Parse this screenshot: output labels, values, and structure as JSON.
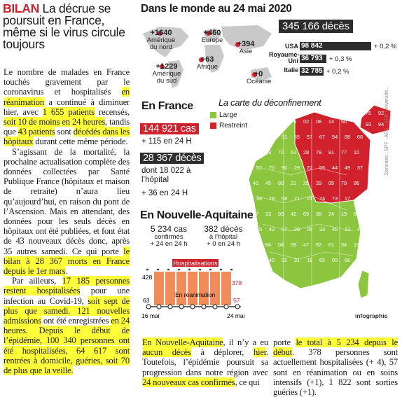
{
  "headline": {
    "keyword": "BILAN",
    "rest": " La décrue se poursuit en France, même si le virus circule toujours"
  },
  "body_left": {
    "p1_a": "Le nombre de malades en France touchés gravement par le coronavirus et hospitalisés ",
    "p1_m1": "en réanimation",
    "p1_b": " a continué à diminuer hier, avec ",
    "p1_m2": "1 655 patients",
    "p1_c": " recensés, ",
    "p1_m3": "soit 10 de moins en 24 heures",
    "p1_d": ", tandis que ",
    "p1_m4": "43 patients",
    "p1_e": " sont ",
    "p1_m5": "décédés dans les hôpitaux",
    "p1_f": " durant cette même période.",
    "p2": "S’agissant de la mortalité, la prochaine actualisation complète des données collectées par Santé Publique France (hôpitaux et maison de retraite) n’aura lieu qu’aujourd’hui, en raison du pont de l’Ascension. Mais en attendant, des données pour les seuls décès en hôpitaux ont été publiées, et font état de 43 nouveaux décès donc, après 35 autres samedi. Ce qui porte ",
    "p2_m": "le bilan à 28 367 morts en France depuis le 1er mars",
    "p2_end": ".",
    "p3_a": "Par ailleurs, ",
    "p3_m1": "17 185 personnes restent hospitalisées",
    "p3_b": " pour une infection au Covid-19, ",
    "p3_m2": "soit sept de plus que samedi. 121 nouvelles admissions",
    "p3_c": " ont été enregistrées ",
    "p3_m3": "en 24 heures. Depuis le début de l’épidémie, 100 340 personnes ont été hospitalisées, 64 617 sont rentrées à domicile, guéries, soit 70 de plus que la veille."
  },
  "body_mid": {
    "m1": "En Nouvelle-Aquitaine",
    "a": ", il n’y a eu ",
    "m2": "aucun décès",
    "b": " à déplorer, ",
    "m3": "hier",
    "c": ". Toutefois, l’épidémie poursuit sa progression dans notre région avec ",
    "m4": "24 nouveaux cas confirmés",
    "d": ", ce qui"
  },
  "body_right": {
    "a": "porte ",
    "m1": "le total à 5 234 depuis le début",
    "b": ". 378 personnes sont actuellement hospitalisées (+ 4), 57 sont en réanimation ou en soins intensifs (+1), 1 822 sont sorties guéries (+1)."
  },
  "world": {
    "title": "Dans le monde au 24 mai 2020",
    "total": "345 166 décès",
    "bubbles": [
      {
        "value": "+1640",
        "label": "Amérique du nord"
      },
      {
        "value": "+460",
        "label": "Europe"
      },
      {
        "value": "+394",
        "label": "Asie"
      },
      {
        "value": "+63",
        "label": "Afrique"
      },
      {
        "value": "+1229",
        "label": "Amérique du sud"
      },
      {
        "value": "+0",
        "label": "Océanie"
      }
    ],
    "countries": [
      {
        "name": "USA",
        "value": "98 842",
        "pct": "+ 0,2 %"
      },
      {
        "name": "Royaume-Uni",
        "value": "36 793",
        "pct": "+ 0,3 %"
      },
      {
        "name": "Italie",
        "value": "32 785",
        "pct": "+ 0,2 %"
      }
    ]
  },
  "france": {
    "title": "En France",
    "cases": "144 921 cas",
    "cases_delta": "+ 115 en 24 H",
    "deaths": "28 367 décès",
    "hosp": "dont 18 022 à l’hôpital",
    "hosp_delta": "+ 36 en 24 H"
  },
  "na": {
    "title": "En Nouvelle-Aquitaine",
    "cases": "5 234 cas",
    "cases_sub": "confirmés",
    "cases_delta": "+ 24 en 24 h",
    "deaths": "382 décès",
    "deaths_sub": "à l’hôpital",
    "deaths_delta": "+ 0 en 24 h",
    "chart": {
      "hosp_label": "Hospitalisations",
      "rea_label": "En réanimation",
      "hosp_start": "428",
      "hosp_end": "378",
      "rea_start": "63",
      "rea_end": "57",
      "date_start": "16 mai",
      "date_end": "24 mai"
    }
  },
  "map": {
    "title": "La carte du déconfinement",
    "legend_large": "Large",
    "legend_restreint": "Restreint",
    "green": "#8cc63f",
    "red": "#d0212d",
    "source": "Données : SPF · ARS · AFP, Université...",
    "credit": "infographie",
    "numbers": [
      "62",
      "59",
      "80",
      "76",
      "02",
      "08",
      "14",
      "50",
      "27",
      "60",
      "95",
      "51",
      "55",
      "57",
      "67",
      "54",
      "88",
      "68",
      "35",
      "53",
      "72",
      "61",
      "28",
      "78",
      "91",
      "77",
      "10",
      "52",
      "70",
      "90",
      "29",
      "22",
      "56",
      "44",
      "49",
      "37",
      "41",
      "45",
      "89",
      "21",
      "25",
      "39",
      "85",
      "79",
      "86",
      "36",
      "18",
      "58",
      "71",
      "01",
      "74",
      "73",
      "17",
      "16",
      "87",
      "23",
      "03",
      "42",
      "69",
      "38",
      "24",
      "19",
      "63",
      "15",
      "43",
      "07",
      "26",
      "05",
      "33",
      "46",
      "12",
      "48",
      "30",
      "84",
      "04",
      "06",
      "47",
      "82",
      "81",
      "34",
      "13",
      "83",
      "40",
      "32",
      "31",
      "11",
      "65",
      "09",
      "66",
      "64",
      "2B",
      "2A",
      "75",
      "92",
      "93",
      "94"
    ]
  }
}
